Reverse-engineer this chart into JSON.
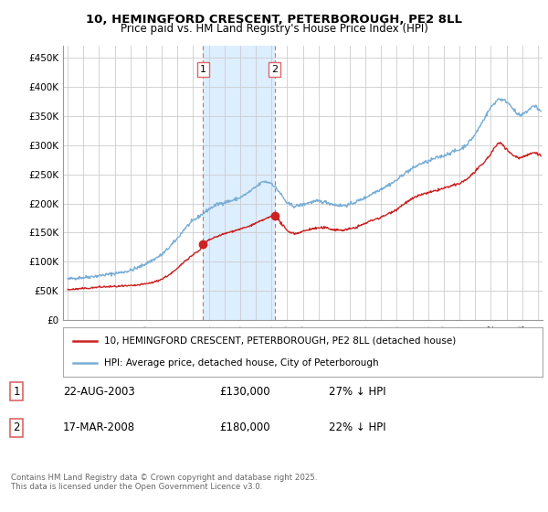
{
  "title": "10, HEMINGFORD CRESCENT, PETERBOROUGH, PE2 8LL",
  "subtitle": "Price paid vs. HM Land Registry's House Price Index (HPI)",
  "ylim": [
    0,
    470000
  ],
  "yticks": [
    0,
    50000,
    100000,
    150000,
    200000,
    250000,
    300000,
    350000,
    400000,
    450000
  ],
  "ytick_labels": [
    "£0",
    "£50K",
    "£100K",
    "£150K",
    "£200K",
    "£250K",
    "£300K",
    "£350K",
    "£400K",
    "£450K"
  ],
  "xlim_start": 1994.7,
  "xlim_end": 2025.3,
  "bg_color": "#ffffff",
  "plot_bg_color": "#ffffff",
  "grid_color": "#cccccc",
  "transaction1_date": 2003.64,
  "transaction1_price": 130000,
  "transaction1_text": "22-AUG-2003",
  "transaction1_pct": "27% ↓ HPI",
  "transaction2_date": 2008.21,
  "transaction2_price": 180000,
  "transaction2_text": "17-MAR-2008",
  "transaction2_pct": "22% ↓ HPI",
  "red_line_color": "#cc2222",
  "blue_line_color": "#7aaed6",
  "shade_color": "#ddeeff",
  "vline_color": "#dd6666",
  "legend_label1": "10, HEMINGFORD CRESCENT, PETERBOROUGH, PE2 8LL (detached house)",
  "legend_label2": "HPI: Average price, detached house, City of Peterborough",
  "footer": "Contains HM Land Registry data © Crown copyright and database right 2025.\nThis data is licensed under the Open Government Licence v3.0.",
  "hpi_keypoints": [
    [
      1995.0,
      70000
    ],
    [
      1995.5,
      72000
    ],
    [
      1996.0,
      73000
    ],
    [
      1996.5,
      74500
    ],
    [
      1997.0,
      76000
    ],
    [
      1997.5,
      78000
    ],
    [
      1998.0,
      80000
    ],
    [
      1998.5,
      82000
    ],
    [
      1999.0,
      85000
    ],
    [
      1999.5,
      90000
    ],
    [
      2000.0,
      97000
    ],
    [
      2000.5,
      104000
    ],
    [
      2001.0,
      112000
    ],
    [
      2001.5,
      125000
    ],
    [
      2002.0,
      140000
    ],
    [
      2002.5,
      158000
    ],
    [
      2003.0,
      170000
    ],
    [
      2003.5,
      180000
    ],
    [
      2004.0,
      190000
    ],
    [
      2004.5,
      198000
    ],
    [
      2005.0,
      202000
    ],
    [
      2005.5,
      205000
    ],
    [
      2006.0,
      210000
    ],
    [
      2006.5,
      218000
    ],
    [
      2007.0,
      228000
    ],
    [
      2007.5,
      238000
    ],
    [
      2008.0,
      235000
    ],
    [
      2008.5,
      220000
    ],
    [
      2009.0,
      200000
    ],
    [
      2009.5,
      195000
    ],
    [
      2010.0,
      198000
    ],
    [
      2010.5,
      202000
    ],
    [
      2011.0,
      204000
    ],
    [
      2011.5,
      202000
    ],
    [
      2012.0,
      198000
    ],
    [
      2012.5,
      196000
    ],
    [
      2013.0,
      198000
    ],
    [
      2013.5,
      204000
    ],
    [
      2014.0,
      210000
    ],
    [
      2014.5,
      218000
    ],
    [
      2015.0,
      225000
    ],
    [
      2015.5,
      232000
    ],
    [
      2016.0,
      240000
    ],
    [
      2016.5,
      252000
    ],
    [
      2017.0,
      260000
    ],
    [
      2017.5,
      268000
    ],
    [
      2018.0,
      272000
    ],
    [
      2018.5,
      278000
    ],
    [
      2019.0,
      282000
    ],
    [
      2019.5,
      288000
    ],
    [
      2020.0,
      292000
    ],
    [
      2020.5,
      302000
    ],
    [
      2021.0,
      318000
    ],
    [
      2021.5,
      342000
    ],
    [
      2022.0,
      365000
    ],
    [
      2022.5,
      380000
    ],
    [
      2023.0,
      375000
    ],
    [
      2023.3,
      368000
    ],
    [
      2023.6,
      355000
    ],
    [
      2023.9,
      350000
    ],
    [
      2024.0,
      352000
    ],
    [
      2024.3,
      358000
    ],
    [
      2024.6,
      365000
    ],
    [
      2024.9,
      368000
    ],
    [
      2025.0,
      362000
    ],
    [
      2025.2,
      358000
    ]
  ],
  "prop_keypoints_before": [
    [
      1995.0,
      52000
    ],
    [
      1995.5,
      53000
    ],
    [
      1996.0,
      54000
    ],
    [
      1996.5,
      55000
    ],
    [
      1997.0,
      56500
    ],
    [
      1997.5,
      57000
    ],
    [
      1998.0,
      57500
    ],
    [
      1998.5,
      58000
    ],
    [
      1999.0,
      58500
    ],
    [
      1999.5,
      60000
    ],
    [
      2000.0,
      62000
    ],
    [
      2000.5,
      65000
    ],
    [
      2001.0,
      70000
    ],
    [
      2001.5,
      78000
    ],
    [
      2002.0,
      88000
    ],
    [
      2002.5,
      102000
    ],
    [
      2003.0,
      112000
    ],
    [
      2003.5,
      122000
    ],
    [
      2003.64,
      130000
    ]
  ],
  "prop_keypoints_between": [
    [
      2003.64,
      130000
    ],
    [
      2004.0,
      137000
    ],
    [
      2004.5,
      143000
    ],
    [
      2005.0,
      148000
    ],
    [
      2005.5,
      152000
    ],
    [
      2006.0,
      156000
    ],
    [
      2006.5,
      160000
    ],
    [
      2007.0,
      166000
    ],
    [
      2007.5,
      172000
    ],
    [
      2008.0,
      178000
    ],
    [
      2008.21,
      180000
    ]
  ],
  "prop_keypoints_after": [
    [
      2008.21,
      180000
    ],
    [
      2008.5,
      170000
    ],
    [
      2009.0,
      153000
    ],
    [
      2009.5,
      148000
    ],
    [
      2010.0,
      152000
    ],
    [
      2010.5,
      156000
    ],
    [
      2011.0,
      158000
    ],
    [
      2011.5,
      158000
    ],
    [
      2012.0,
      155000
    ],
    [
      2012.5,
      154000
    ],
    [
      2013.0,
      156000
    ],
    [
      2013.5,
      160000
    ],
    [
      2014.0,
      166000
    ],
    [
      2014.5,
      172000
    ],
    [
      2015.0,
      176000
    ],
    [
      2015.5,
      183000
    ],
    [
      2016.0,
      190000
    ],
    [
      2016.5,
      200000
    ],
    [
      2017.0,
      208000
    ],
    [
      2017.5,
      215000
    ],
    [
      2018.0,
      218000
    ],
    [
      2018.5,
      222000
    ],
    [
      2019.0,
      226000
    ],
    [
      2019.5,
      230000
    ],
    [
      2020.0,
      234000
    ],
    [
      2020.5,
      242000
    ],
    [
      2021.0,
      255000
    ],
    [
      2021.5,
      268000
    ],
    [
      2022.0,
      285000
    ],
    [
      2022.3,
      298000
    ],
    [
      2022.6,
      305000
    ],
    [
      2022.8,
      300000
    ],
    [
      2023.0,
      293000
    ],
    [
      2023.3,
      285000
    ],
    [
      2023.6,
      280000
    ],
    [
      2023.9,
      278000
    ],
    [
      2024.0,
      280000
    ],
    [
      2024.3,
      283000
    ],
    [
      2024.6,
      286000
    ],
    [
      2024.9,
      288000
    ],
    [
      2025.0,
      285000
    ],
    [
      2025.2,
      282000
    ]
  ]
}
